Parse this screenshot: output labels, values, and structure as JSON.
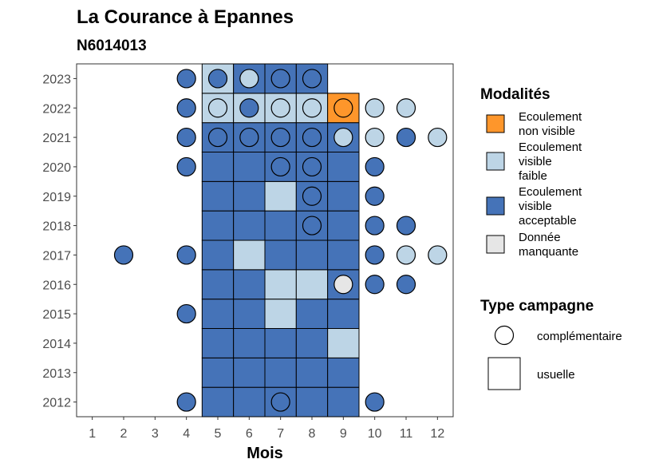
{
  "chart_data": {
    "type": "heatmap",
    "title": "La Courance à Epannes",
    "subtitle": "N6014013",
    "xlabel": "Mois",
    "ylabel": "",
    "x_ticks": [
      "1",
      "2",
      "3",
      "4",
      "5",
      "6",
      "7",
      "8",
      "9",
      "10",
      "11",
      "12"
    ],
    "y_ticks": [
      "2012",
      "2013",
      "2014",
      "2015",
      "2016",
      "2017",
      "2018",
      "2019",
      "2020",
      "2021",
      "2022",
      "2023"
    ],
    "xlim": [
      0.5,
      12.5
    ],
    "ylim": [
      2011.5,
      2023.5
    ],
    "grid": false,
    "legend_placement": "right",
    "colors": {
      "non_visible": "#FE962B",
      "visible_faible": "#BDD5E6",
      "visible_acceptable": "#4573B8",
      "manquante": "#E6E6E6"
    },
    "legend_modalites": {
      "title": "Modalités",
      "items": [
        {
          "key": "non_visible",
          "lines": [
            "Ecoulement",
            "non visible"
          ]
        },
        {
          "key": "visible_faible",
          "lines": [
            "Ecoulement",
            "visible",
            "faible"
          ]
        },
        {
          "key": "visible_acceptable",
          "lines": [
            "Ecoulement",
            "visible",
            "acceptable"
          ]
        },
        {
          "key": "manquante",
          "lines": [
            "Donnée",
            "manquante"
          ]
        }
      ]
    },
    "legend_campagne": {
      "title": "Type campagne",
      "items": [
        {
          "shape": "circle",
          "label": "complémentaire"
        },
        {
          "shape": "square",
          "label": "usuelle"
        }
      ]
    },
    "usuelle": [
      {
        "year": 2012,
        "month": 5,
        "v": "visible_acceptable"
      },
      {
        "year": 2012,
        "month": 6,
        "v": "visible_acceptable"
      },
      {
        "year": 2012,
        "month": 7,
        "v": "visible_acceptable"
      },
      {
        "year": 2012,
        "month": 8,
        "v": "visible_acceptable"
      },
      {
        "year": 2012,
        "month": 9,
        "v": "visible_acceptable"
      },
      {
        "year": 2013,
        "month": 5,
        "v": "visible_acceptable"
      },
      {
        "year": 2013,
        "month": 6,
        "v": "visible_acceptable"
      },
      {
        "year": 2013,
        "month": 7,
        "v": "visible_acceptable"
      },
      {
        "year": 2013,
        "month": 8,
        "v": "visible_acceptable"
      },
      {
        "year": 2013,
        "month": 9,
        "v": "visible_acceptable"
      },
      {
        "year": 2014,
        "month": 5,
        "v": "visible_acceptable"
      },
      {
        "year": 2014,
        "month": 6,
        "v": "visible_acceptable"
      },
      {
        "year": 2014,
        "month": 7,
        "v": "visible_acceptable"
      },
      {
        "year": 2014,
        "month": 8,
        "v": "visible_acceptable"
      },
      {
        "year": 2014,
        "month": 9,
        "v": "visible_faible"
      },
      {
        "year": 2015,
        "month": 5,
        "v": "visible_acceptable"
      },
      {
        "year": 2015,
        "month": 6,
        "v": "visible_acceptable"
      },
      {
        "year": 2015,
        "month": 7,
        "v": "visible_faible"
      },
      {
        "year": 2015,
        "month": 8,
        "v": "visible_acceptable"
      },
      {
        "year": 2015,
        "month": 9,
        "v": "visible_acceptable"
      },
      {
        "year": 2016,
        "month": 5,
        "v": "visible_acceptable"
      },
      {
        "year": 2016,
        "month": 6,
        "v": "visible_acceptable"
      },
      {
        "year": 2016,
        "month": 7,
        "v": "visible_faible"
      },
      {
        "year": 2016,
        "month": 8,
        "v": "visible_faible"
      },
      {
        "year": 2016,
        "month": 9,
        "v": "visible_acceptable"
      },
      {
        "year": 2017,
        "month": 5,
        "v": "visible_acceptable"
      },
      {
        "year": 2017,
        "month": 6,
        "v": "visible_faible"
      },
      {
        "year": 2017,
        "month": 7,
        "v": "visible_acceptable"
      },
      {
        "year": 2017,
        "month": 8,
        "v": "visible_acceptable"
      },
      {
        "year": 2017,
        "month": 9,
        "v": "visible_acceptable"
      },
      {
        "year": 2018,
        "month": 5,
        "v": "visible_acceptable"
      },
      {
        "year": 2018,
        "month": 6,
        "v": "visible_acceptable"
      },
      {
        "year": 2018,
        "month": 7,
        "v": "visible_acceptable"
      },
      {
        "year": 2018,
        "month": 8,
        "v": "visible_acceptable"
      },
      {
        "year": 2018,
        "month": 9,
        "v": "visible_acceptable"
      },
      {
        "year": 2019,
        "month": 5,
        "v": "visible_acceptable"
      },
      {
        "year": 2019,
        "month": 6,
        "v": "visible_acceptable"
      },
      {
        "year": 2019,
        "month": 7,
        "v": "visible_faible"
      },
      {
        "year": 2019,
        "month": 8,
        "v": "visible_acceptable"
      },
      {
        "year": 2019,
        "month": 9,
        "v": "visible_acceptable"
      },
      {
        "year": 2020,
        "month": 5,
        "v": "visible_acceptable"
      },
      {
        "year": 2020,
        "month": 6,
        "v": "visible_acceptable"
      },
      {
        "year": 2020,
        "month": 7,
        "v": "visible_acceptable"
      },
      {
        "year": 2020,
        "month": 8,
        "v": "visible_acceptable"
      },
      {
        "year": 2020,
        "month": 9,
        "v": "visible_acceptable"
      },
      {
        "year": 2021,
        "month": 5,
        "v": "visible_acceptable"
      },
      {
        "year": 2021,
        "month": 6,
        "v": "visible_acceptable"
      },
      {
        "year": 2021,
        "month": 7,
        "v": "visible_acceptable"
      },
      {
        "year": 2021,
        "month": 8,
        "v": "visible_acceptable"
      },
      {
        "year": 2021,
        "month": 9,
        "v": "visible_acceptable"
      },
      {
        "year": 2022,
        "month": 5,
        "v": "visible_faible"
      },
      {
        "year": 2022,
        "month": 6,
        "v": "visible_faible"
      },
      {
        "year": 2022,
        "month": 7,
        "v": "visible_faible"
      },
      {
        "year": 2022,
        "month": 8,
        "v": "visible_faible"
      },
      {
        "year": 2022,
        "month": 9,
        "v": "non_visible"
      },
      {
        "year": 2023,
        "month": 5,
        "v": "visible_faible"
      },
      {
        "year": 2023,
        "month": 6,
        "v": "visible_acceptable"
      },
      {
        "year": 2023,
        "month": 7,
        "v": "visible_acceptable"
      },
      {
        "year": 2023,
        "month": 8,
        "v": "visible_acceptable"
      }
    ],
    "complementaire": [
      {
        "year": 2012,
        "month": 4,
        "v": "visible_acceptable"
      },
      {
        "year": 2012,
        "month": 7,
        "v": "visible_acceptable"
      },
      {
        "year": 2012,
        "month": 10,
        "v": "visible_acceptable"
      },
      {
        "year": 2015,
        "month": 4,
        "v": "visible_acceptable"
      },
      {
        "year": 2016,
        "month": 9,
        "v": "manquante"
      },
      {
        "year": 2016,
        "month": 10,
        "v": "visible_acceptable"
      },
      {
        "year": 2016,
        "month": 11,
        "v": "visible_acceptable"
      },
      {
        "year": 2017,
        "month": 2,
        "v": "visible_acceptable"
      },
      {
        "year": 2017,
        "month": 4,
        "v": "visible_acceptable"
      },
      {
        "year": 2017,
        "month": 10,
        "v": "visible_acceptable"
      },
      {
        "year": 2017,
        "month": 11,
        "v": "visible_faible"
      },
      {
        "year": 2017,
        "month": 12,
        "v": "visible_faible"
      },
      {
        "year": 2018,
        "month": 8,
        "v": "visible_acceptable"
      },
      {
        "year": 2018,
        "month": 10,
        "v": "visible_acceptable"
      },
      {
        "year": 2018,
        "month": 11,
        "v": "visible_acceptable"
      },
      {
        "year": 2019,
        "month": 8,
        "v": "visible_acceptable"
      },
      {
        "year": 2019,
        "month": 10,
        "v": "visible_acceptable"
      },
      {
        "year": 2020,
        "month": 4,
        "v": "visible_acceptable"
      },
      {
        "year": 2020,
        "month": 7,
        "v": "visible_acceptable"
      },
      {
        "year": 2020,
        "month": 8,
        "v": "visible_acceptable"
      },
      {
        "year": 2020,
        "month": 10,
        "v": "visible_acceptable"
      },
      {
        "year": 2021,
        "month": 4,
        "v": "visible_acceptable"
      },
      {
        "year": 2021,
        "month": 5,
        "v": "visible_acceptable"
      },
      {
        "year": 2021,
        "month": 6,
        "v": "visible_acceptable"
      },
      {
        "year": 2021,
        "month": 7,
        "v": "visible_acceptable"
      },
      {
        "year": 2021,
        "month": 8,
        "v": "visible_acceptable"
      },
      {
        "year": 2021,
        "month": 9,
        "v": "visible_faible"
      },
      {
        "year": 2021,
        "month": 10,
        "v": "visible_faible"
      },
      {
        "year": 2021,
        "month": 11,
        "v": "visible_acceptable"
      },
      {
        "year": 2021,
        "month": 12,
        "v": "visible_faible"
      },
      {
        "year": 2022,
        "month": 4,
        "v": "visible_acceptable"
      },
      {
        "year": 2022,
        "month": 5,
        "v": "visible_faible"
      },
      {
        "year": 2022,
        "month": 6,
        "v": "visible_acceptable"
      },
      {
        "year": 2022,
        "month": 7,
        "v": "visible_faible"
      },
      {
        "year": 2022,
        "month": 8,
        "v": "visible_faible"
      },
      {
        "year": 2022,
        "month": 9,
        "v": "non_visible"
      },
      {
        "year": 2022,
        "month": 10,
        "v": "visible_faible"
      },
      {
        "year": 2022,
        "month": 11,
        "v": "visible_faible"
      },
      {
        "year": 2023,
        "month": 4,
        "v": "visible_acceptable"
      },
      {
        "year": 2023,
        "month": 5,
        "v": "visible_acceptable"
      },
      {
        "year": 2023,
        "month": 6,
        "v": "visible_faible"
      },
      {
        "year": 2023,
        "month": 7,
        "v": "visible_acceptable"
      },
      {
        "year": 2023,
        "month": 8,
        "v": "visible_acceptable"
      }
    ]
  }
}
